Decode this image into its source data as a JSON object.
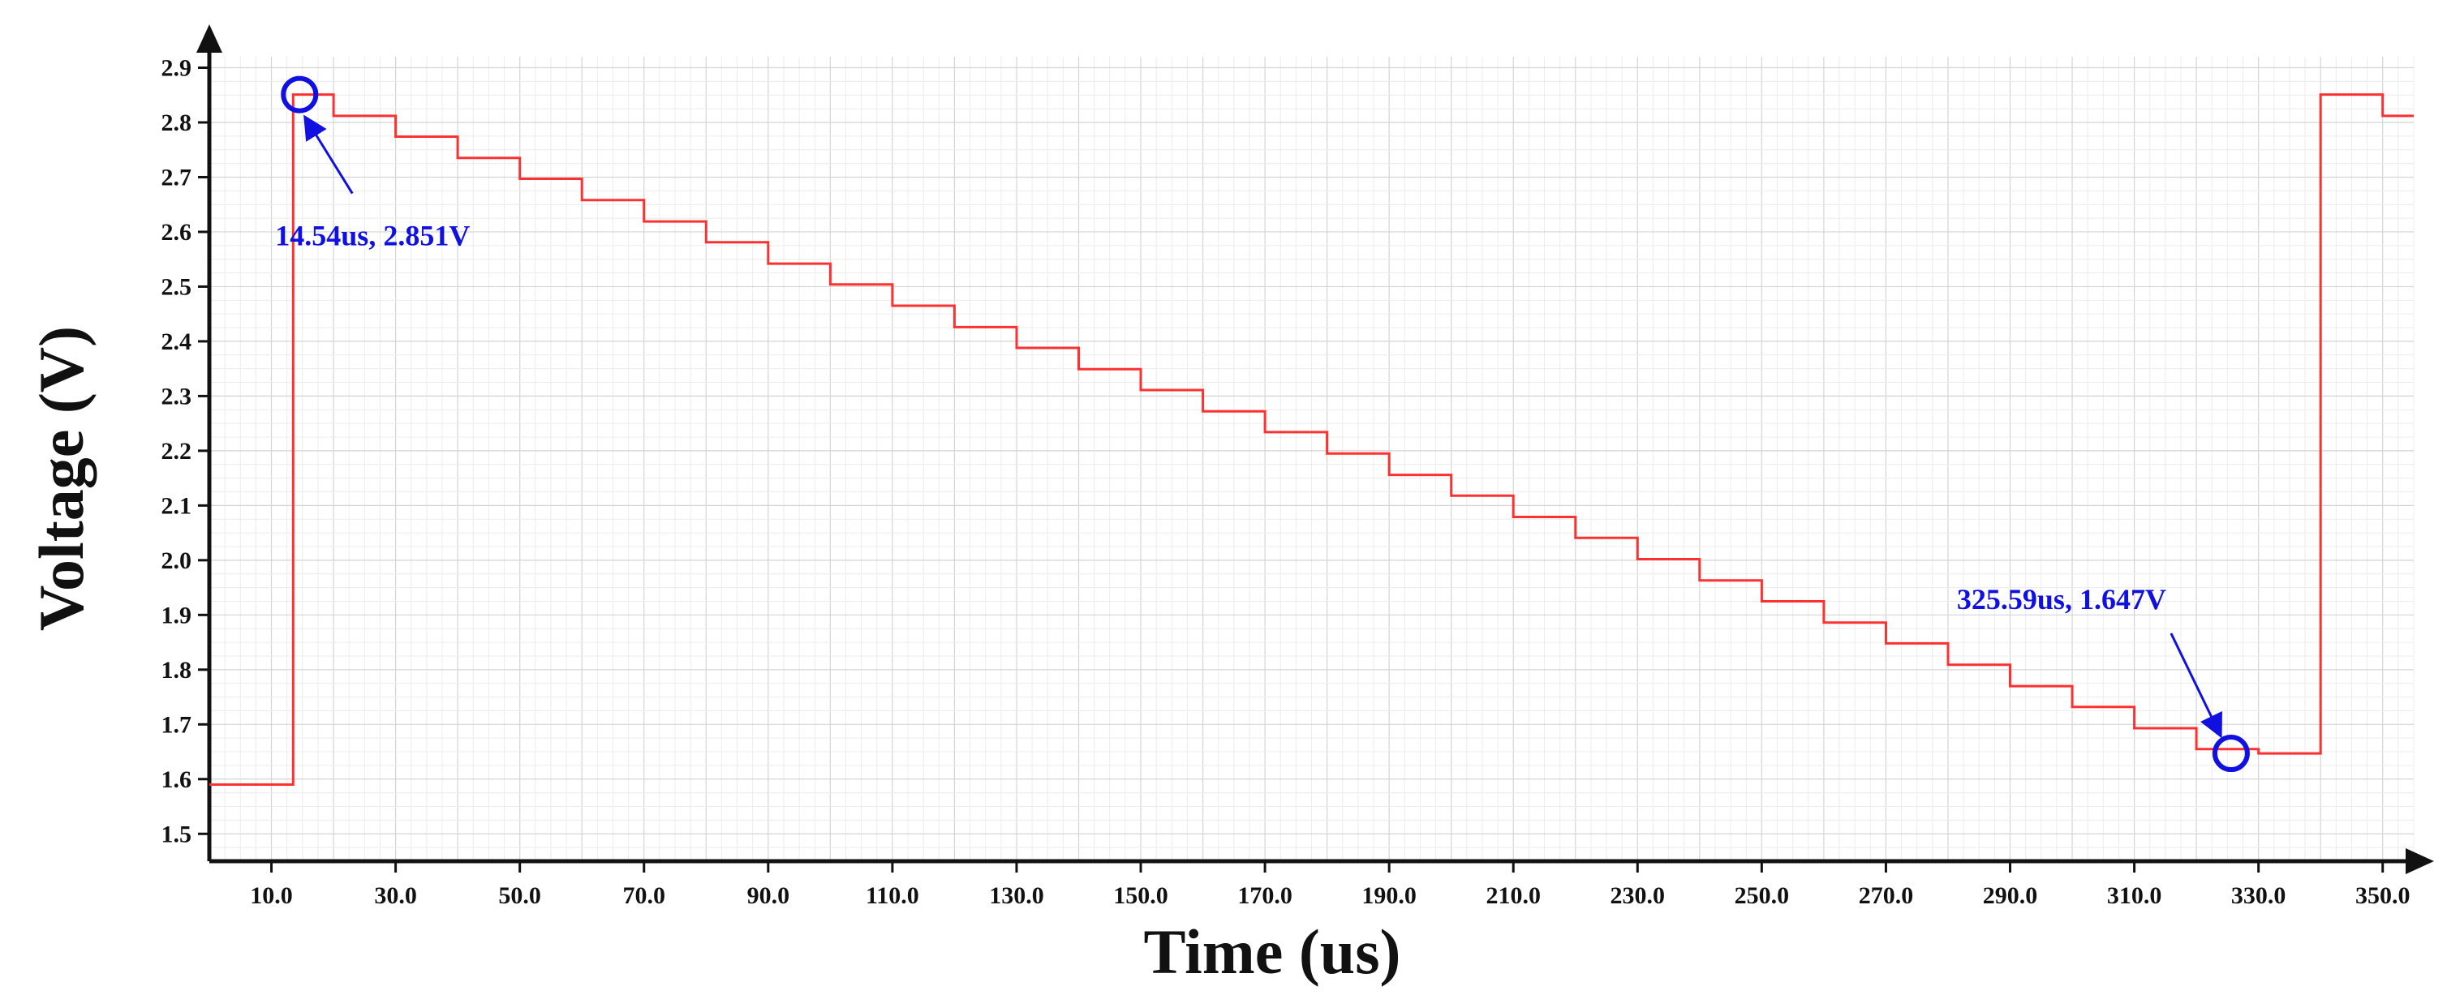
{
  "chart_data": {
    "type": "line",
    "xlabel": "Time (us)",
    "ylabel": "Voltage (V)",
    "xlim": [
      0,
      355
    ],
    "ylim": [
      1.45,
      2.92
    ],
    "xticks": [
      "10.0",
      "30.0",
      "50.0",
      "70.0",
      "90.0",
      "110.0",
      "130.0",
      "150.0",
      "170.0",
      "190.0",
      "210.0",
      "230.0",
      "250.0",
      "270.0",
      "290.0",
      "310.0",
      "330.0",
      "350.0"
    ],
    "xtick_values": [
      10,
      30,
      50,
      70,
      90,
      110,
      130,
      150,
      170,
      190,
      210,
      230,
      250,
      270,
      290,
      310,
      330,
      350
    ],
    "yticks": [
      "1.5",
      "1.6",
      "1.7",
      "1.8",
      "1.9",
      "2.0",
      "2.1",
      "2.2",
      "2.3",
      "2.4",
      "2.5",
      "2.6",
      "2.7",
      "2.8",
      "2.9"
    ],
    "ytick_values": [
      1.5,
      1.6,
      1.7,
      1.8,
      1.9,
      2.0,
      2.1,
      2.2,
      2.3,
      2.4,
      2.5,
      2.6,
      2.7,
      2.8,
      2.9
    ],
    "grid": true,
    "series": [
      {
        "color": "#ff3030",
        "x": [
          0,
          13.5,
          13.5,
          20,
          20,
          30,
          30,
          40,
          40,
          50,
          50,
          60,
          60,
          70,
          70,
          80,
          80,
          90,
          90,
          100,
          100,
          110,
          110,
          120,
          120,
          130,
          130,
          140,
          140,
          150,
          150,
          160,
          160,
          170,
          170,
          180,
          180,
          190,
          190,
          200,
          200,
          210,
          210,
          220,
          220,
          230,
          230,
          240,
          240,
          250,
          250,
          260,
          260,
          270,
          270,
          280,
          280,
          290,
          290,
          300,
          300,
          310,
          310,
          320,
          320,
          330,
          330,
          340,
          340,
          350,
          350,
          355
        ],
        "y": [
          1.59,
          1.59,
          2.851,
          2.851,
          2.812,
          2.812,
          2.774,
          2.774,
          2.735,
          2.735,
          2.697,
          2.697,
          2.658,
          2.658,
          2.619,
          2.619,
          2.581,
          2.581,
          2.542,
          2.542,
          2.504,
          2.504,
          2.465,
          2.465,
          2.426,
          2.426,
          2.388,
          2.388,
          2.349,
          2.349,
          2.311,
          2.311,
          2.272,
          2.272,
          2.234,
          2.234,
          2.195,
          2.195,
          2.156,
          2.156,
          2.118,
          2.118,
          2.079,
          2.079,
          2.041,
          2.041,
          2.002,
          2.002,
          1.963,
          1.963,
          1.925,
          1.925,
          1.886,
          1.886,
          1.848,
          1.848,
          1.809,
          1.809,
          1.77,
          1.77,
          1.732,
          1.732,
          1.693,
          1.693,
          1.655,
          1.655,
          1.647,
          1.647,
          2.851,
          2.851,
          2.812,
          2.812
        ]
      }
    ],
    "annotations": [
      {
        "text": "14.54us, 2.851V",
        "x": 14.54,
        "y": 2.851
      },
      {
        "text": "325.59us, 1.647V",
        "x": 325.59,
        "y": 1.647
      }
    ],
    "annotation_color": "#1010e0"
  }
}
